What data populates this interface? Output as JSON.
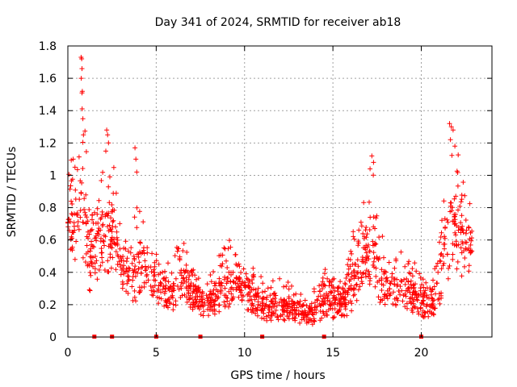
{
  "chart_data": {
    "type": "scatter",
    "title": "Day 341 of 2024, SRMTID for receiver ab18",
    "xlabel": "GPS time / hours",
    "ylabel": "SRMTID / TECUs",
    "xlim": [
      0,
      24
    ],
    "ylim": [
      0,
      1.8
    ],
    "xticks": [
      0,
      5,
      10,
      15,
      20
    ],
    "yticks": [
      0,
      0.2,
      0.4,
      0.6,
      0.8,
      1,
      1.2,
      1.4,
      1.6,
      1.8
    ],
    "ytick_labels": [
      "0",
      "0.2",
      "0.4",
      "0.6",
      "0.8",
      "1",
      "1.2",
      "1.4",
      "1.6",
      "1.8"
    ],
    "xtick_labels": [
      "0",
      "5",
      "10",
      "15",
      "20"
    ],
    "grid": true,
    "marker": "+",
    "color": "#ff0000",
    "series": [
      {
        "name": "SRMTID",
        "profile": {
          "x": [
            0.0,
            0.5,
            0.8,
            1.2,
            1.8,
            2.2,
            2.6,
            3.0,
            3.5,
            3.8,
            4.2,
            4.6,
            5.0,
            5.5,
            6.0,
            6.4,
            6.8,
            7.3,
            7.8,
            8.3,
            8.8,
            9.3,
            9.8,
            10.3,
            10.8,
            11.3,
            11.8,
            12.3,
            12.8,
            13.3,
            13.8,
            14.3,
            14.8,
            15.3,
            15.8,
            16.3,
            16.8,
            17.2,
            17.6,
            18.0,
            18.5,
            19.0,
            19.5,
            20.0,
            20.5,
            21.0,
            21.5,
            22.0,
            22.5,
            22.9
          ],
          "center": [
            0.6,
            0.62,
            0.7,
            0.45,
            0.52,
            0.55,
            0.6,
            0.4,
            0.35,
            0.38,
            0.42,
            0.35,
            0.3,
            0.25,
            0.24,
            0.38,
            0.25,
            0.22,
            0.18,
            0.2,
            0.28,
            0.32,
            0.27,
            0.22,
            0.2,
            0.15,
            0.18,
            0.16,
            0.14,
            0.12,
            0.13,
            0.18,
            0.2,
            0.17,
            0.22,
            0.32,
            0.4,
            0.45,
            0.35,
            0.28,
            0.26,
            0.3,
            0.22,
            0.2,
            0.18,
            0.28,
            0.55,
            0.6,
            0.55,
            0.5
          ],
          "spread": [
            0.25,
            0.35,
            0.5,
            0.3,
            0.25,
            0.35,
            0.25,
            0.18,
            0.15,
            0.3,
            0.2,
            0.15,
            0.14,
            0.12,
            0.12,
            0.22,
            0.12,
            0.12,
            0.1,
            0.14,
            0.2,
            0.2,
            0.17,
            0.14,
            0.13,
            0.1,
            0.12,
            0.1,
            0.09,
            0.08,
            0.09,
            0.13,
            0.14,
            0.11,
            0.16,
            0.22,
            0.32,
            0.35,
            0.22,
            0.16,
            0.16,
            0.18,
            0.14,
            0.13,
            0.12,
            0.2,
            0.35,
            0.4,
            0.3,
            0.2
          ]
        },
        "peaks": [
          {
            "x": 0.75,
            "y": 1.73
          },
          {
            "x": 0.78,
            "y": 1.72
          },
          {
            "x": 0.8,
            "y": 1.66
          },
          {
            "x": 0.76,
            "y": 1.6
          },
          {
            "x": 0.82,
            "y": 1.52
          },
          {
            "x": 0.8,
            "y": 1.51
          },
          {
            "x": 0.85,
            "y": 1.35
          },
          {
            "x": 0.88,
            "y": 1.25
          },
          {
            "x": 2.2,
            "y": 1.28
          },
          {
            "x": 2.25,
            "y": 1.25
          },
          {
            "x": 2.3,
            "y": 1.2
          },
          {
            "x": 2.15,
            "y": 1.15
          },
          {
            "x": 3.8,
            "y": 1.17
          },
          {
            "x": 3.85,
            "y": 1.1
          },
          {
            "x": 3.9,
            "y": 1.02
          },
          {
            "x": 17.2,
            "y": 1.12
          },
          {
            "x": 17.3,
            "y": 1.08
          },
          {
            "x": 17.1,
            "y": 1.04
          },
          {
            "x": 21.6,
            "y": 1.32
          },
          {
            "x": 21.7,
            "y": 1.3
          },
          {
            "x": 21.8,
            "y": 1.28
          },
          {
            "x": 21.65,
            "y": 1.22
          },
          {
            "x": 21.9,
            "y": 1.18
          },
          {
            "x": 0.3,
            "y": 1.1
          },
          {
            "x": 0.4,
            "y": 1.05
          }
        ],
        "count": 1500
      }
    ],
    "gap_markers_x": [
      1.5,
      2.5,
      5.0,
      7.5,
      11.0,
      14.5,
      20.0
    ]
  }
}
